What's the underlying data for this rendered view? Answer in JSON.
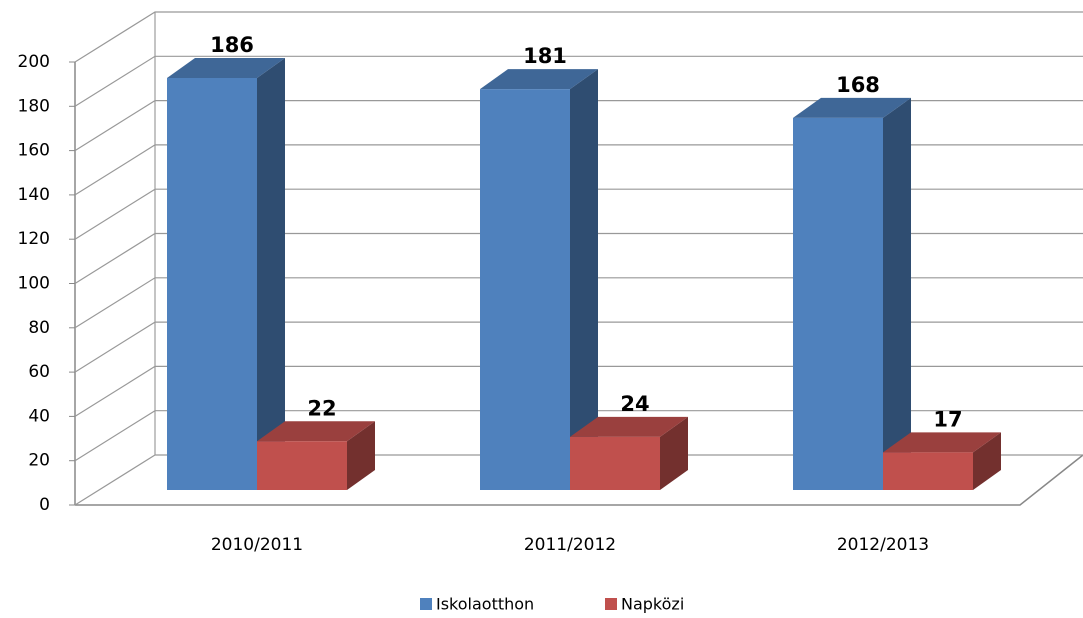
{
  "chart_data": {
    "type": "bar3d",
    "categories": [
      "2010/2011",
      "2011/2012",
      "2012/2013"
    ],
    "series": [
      {
        "name": "Iskolaotthon",
        "color": "#4f81bd",
        "values": [
          186,
          181,
          168
        ]
      },
      {
        "name": "Napközi",
        "color": "#c0504d",
        "values": [
          22,
          24,
          17
        ]
      }
    ],
    "ylim": [
      0,
      200
    ],
    "yticks": [
      0,
      20,
      40,
      60,
      80,
      100,
      120,
      140,
      160,
      180,
      200
    ],
    "grid": true,
    "legend": "bottom"
  }
}
